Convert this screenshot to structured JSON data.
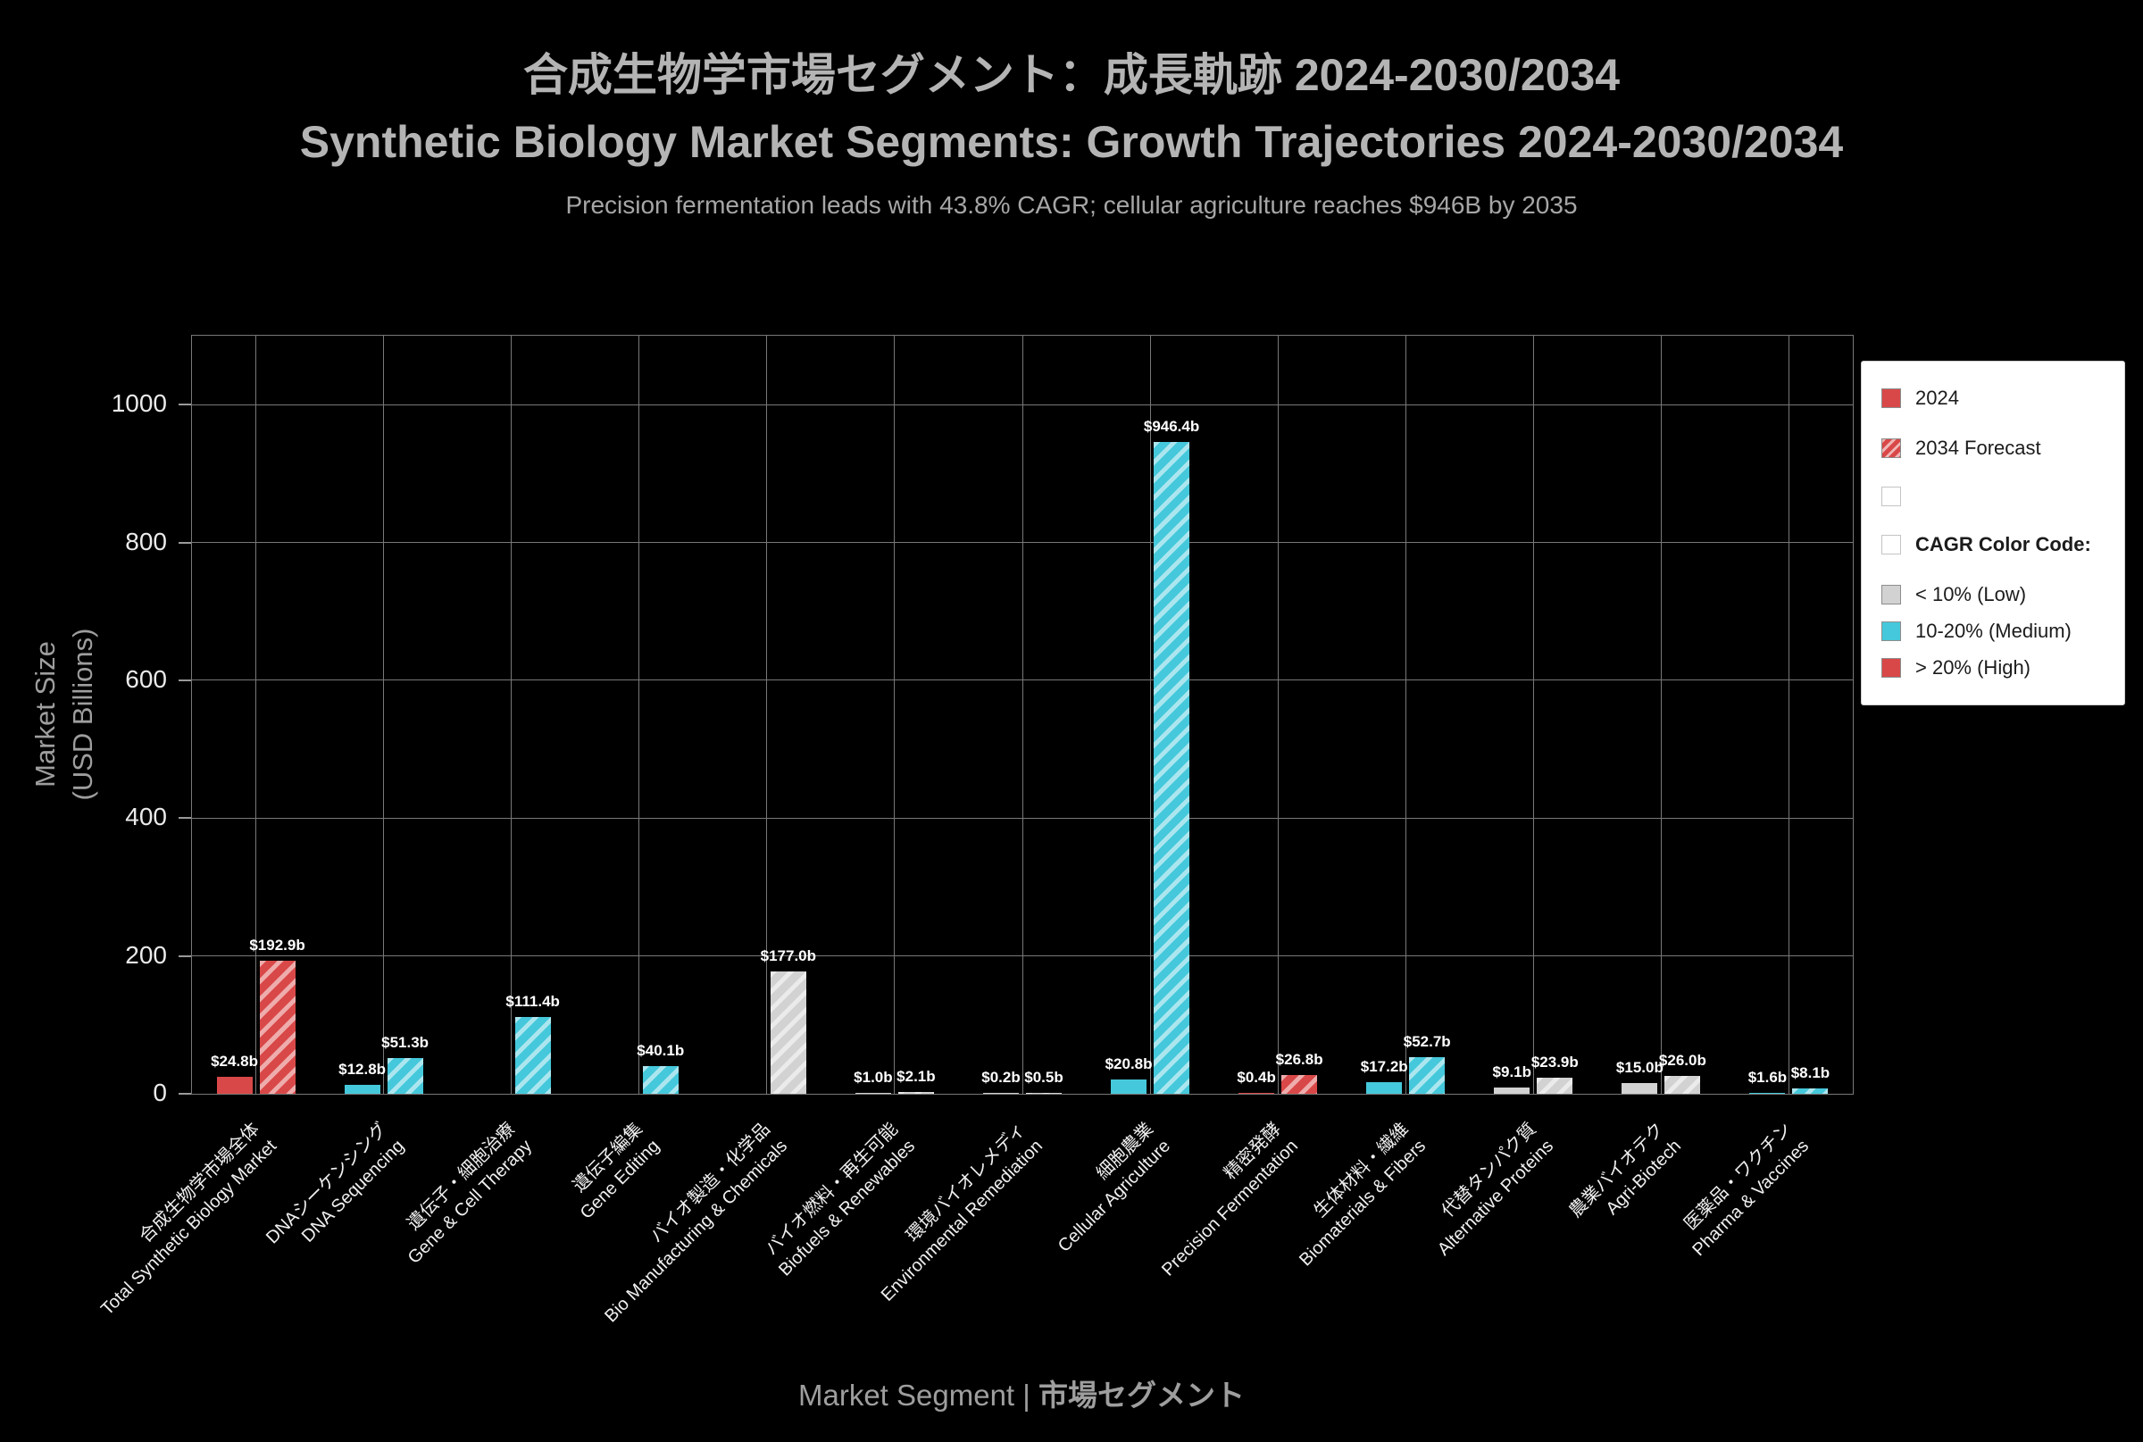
{
  "header": {
    "title_ja": "合成生物学市場セグメント：成長軌跡 2024-2030/2034",
    "title_en": "Synthetic Biology Market Segments: Growth Trajectories 2024-2030/2034",
    "subtitle": "Precision fermentation leads with 43.8% CAGR; cellular agriculture reaches $946B by 2035"
  },
  "colors": {
    "background": "#000000",
    "title": "#b4b4b4",
    "subtitle": "#a6a6a6",
    "grid": "#787878",
    "axis_label": "#9e9e9e",
    "tick_label": "#eaeaea",
    "cagr_low": "#d2d2d2",
    "cagr_medium": "#45c8db",
    "cagr_high": "#d94848"
  },
  "chart_data": {
    "type": "bar",
    "title": "Synthetic Biology Market Segments: Growth Trajectories 2024-2030/2034",
    "title_ja": "合成生物学市場セグメント：成長軌跡 2024-2030/2034",
    "subtitle": "Precision fermentation leads with 43.8% CAGR; cellular agriculture reaches $946B by 2035",
    "xlabel": "Market Segment | 市場セグメント",
    "xlabel_prefix": "Market Segment | ",
    "xlabel_ja": "市場セグメント",
    "ylabel": "Market Size (USD Billions)",
    "ylabel_line1": "Market Size",
    "ylabel_line2": "(USD Billions)",
    "ylim": [
      0,
      1100
    ],
    "yticks": [
      0,
      200,
      400,
      600,
      800,
      1000
    ],
    "grid": true,
    "legend_position": "upper right",
    "categories": [
      {
        "ja": "合成生物学市場全体",
        "en": "Total Synthetic Biology Market"
      },
      {
        "ja": "DNAシーケンシング",
        "en": "DNA Sequencing"
      },
      {
        "ja": "遺伝子・細胞治療",
        "en": "Gene & Cell Therapy"
      },
      {
        "ja": "遺伝子編集",
        "en": "Gene Editing"
      },
      {
        "ja": "バイオ製造・化学品",
        "en": "Bio Manufacturing & Chemicals"
      },
      {
        "ja": "バイオ燃料・再生可能",
        "en": "Biofuels & Renewables"
      },
      {
        "ja": "環境バイオレメディ",
        "en": "Environmental Remediation"
      },
      {
        "ja": "細胞農業",
        "en": "Cellular Agriculture"
      },
      {
        "ja": "精密発酵",
        "en": "Precision Fermentation"
      },
      {
        "ja": "生体材料・繊維",
        "en": "Biomaterials & Fibers"
      },
      {
        "ja": "代替タンパク質",
        "en": "Alternative Proteins"
      },
      {
        "ja": "農業バイオテク",
        "en": "Agri-Biotech"
      },
      {
        "ja": "医薬品・ワクチン",
        "en": "Pharma & Vaccines"
      }
    ],
    "cagr_levels": [
      "high",
      "medium",
      "medium",
      "medium",
      "low",
      "low",
      "low",
      "medium",
      "high",
      "medium",
      "low",
      "low",
      "medium"
    ],
    "series": [
      {
        "name": "2024",
        "style": "solid",
        "values": [
          24.8,
          12.8,
          null,
          null,
          null,
          1.0,
          0.2,
          20.8,
          0.4,
          17.2,
          9.1,
          15.0,
          1.6
        ],
        "labels": [
          "$24.8b",
          "$12.8b",
          null,
          null,
          null,
          "$1.0b",
          "$0.2b",
          "$20.8b",
          "$0.4b",
          "$17.2b",
          "$9.1b",
          "$15.0b",
          "$1.6b"
        ]
      },
      {
        "name": "2034 Forecast",
        "style": "hatched",
        "values": [
          192.9,
          51.3,
          111.4,
          40.1,
          177.0,
          2.1,
          0.5,
          946.4,
          26.8,
          52.7,
          23.9,
          26.0,
          8.1
        ],
        "labels": [
          "$192.9b",
          "$51.3b",
          "$111.4b",
          "$40.1b",
          "$177.0b",
          "$2.1b",
          "$0.5b",
          "$946.4b",
          "$26.8b",
          "$52.7b",
          "$23.9b",
          "$26.0b",
          "$8.1b"
        ]
      }
    ]
  },
  "legend": {
    "items": [
      {
        "swatch_type": "solid",
        "swatch_color": "high",
        "label": "2024",
        "bold": false,
        "small": false
      },
      {
        "swatch_type": "hatch",
        "swatch_color": "high",
        "label": "2034 Forecast",
        "bold": false,
        "small": false
      },
      {
        "swatch_type": "empty",
        "swatch_color": null,
        "label": "",
        "bold": false,
        "small": false
      },
      {
        "swatch_type": "empty",
        "swatch_color": null,
        "label": "CAGR Color Code:",
        "bold": true,
        "small": false
      },
      {
        "swatch_type": "solid",
        "swatch_color": "low",
        "label": "< 10% (Low)",
        "bold": false,
        "small": true
      },
      {
        "swatch_type": "solid",
        "swatch_color": "medium",
        "label": "10-20% (Medium)",
        "bold": false,
        "small": true
      },
      {
        "swatch_type": "solid",
        "swatch_color": "high",
        "label": "> 20% (High)",
        "bold": false,
        "small": true
      }
    ]
  }
}
